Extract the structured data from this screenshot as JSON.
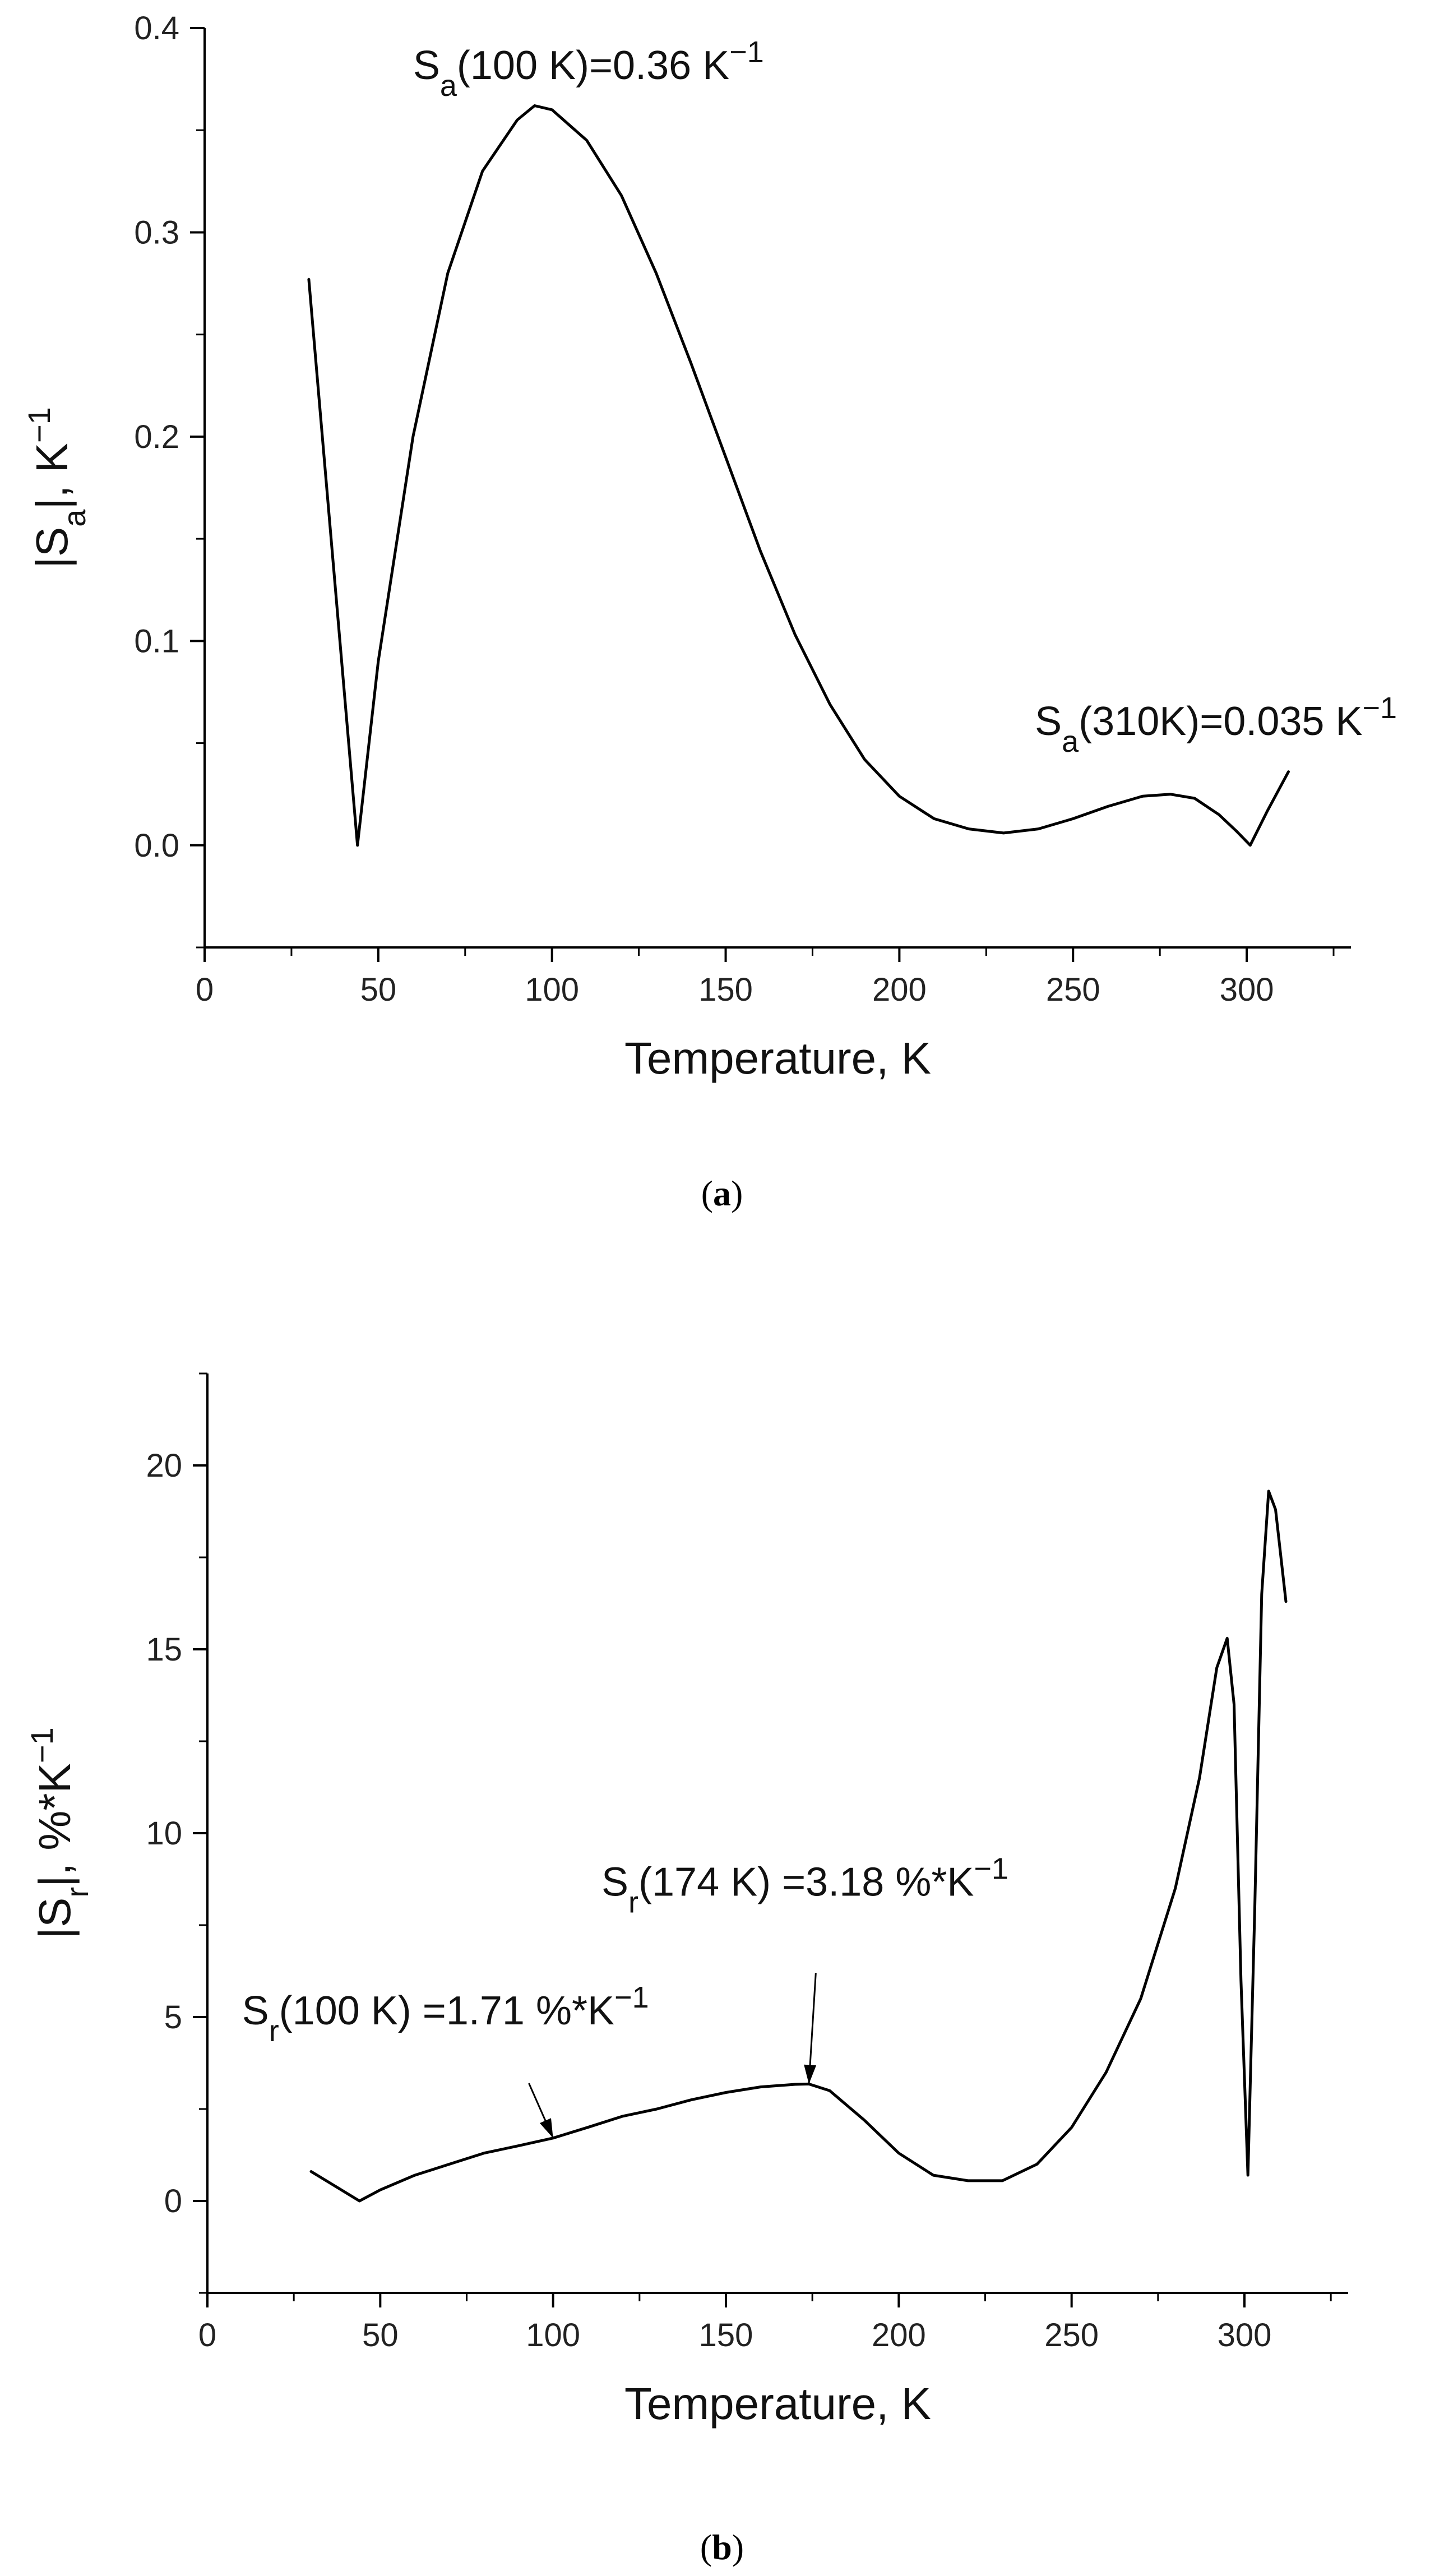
{
  "chart_data": [
    {
      "type": "line",
      "panel": "a",
      "caption": "(a)",
      "xlabel": "Temperature, K",
      "ylabel": {
        "prefix": "|S",
        "sub": "a",
        "mid": "|, K",
        "sup": "−1"
      },
      "xlim": [
        0,
        330
      ],
      "ylim": [
        -0.05,
        0.4
      ],
      "xticks": [
        0,
        50,
        100,
        150,
        200,
        250,
        300
      ],
      "yticks": [
        0.0,
        0.1,
        0.2,
        0.3,
        0.4
      ],
      "ytick_labels": [
        "0.0",
        "0.1",
        "0.2",
        "0.3",
        "0.4"
      ],
      "series": [
        {
          "x": [
            30,
            44,
            50,
            60,
            70,
            80,
            90,
            95,
            100,
            110,
            120,
            130,
            140,
            150,
            160,
            170,
            180,
            190,
            200,
            210,
            220,
            230,
            240,
            250,
            260,
            270,
            278,
            285,
            292,
            297,
            301,
            306,
            312
          ],
          "y": [
            0.277,
            0.0,
            0.09,
            0.2,
            0.28,
            0.33,
            0.355,
            0.362,
            0.36,
            0.345,
            0.318,
            0.28,
            0.236,
            0.19,
            0.144,
            0.103,
            0.069,
            0.042,
            0.024,
            0.013,
            0.008,
            0.006,
            0.008,
            0.013,
            0.019,
            0.024,
            0.025,
            0.023,
            0.015,
            0.007,
            0.0,
            0.017,
            0.036
          ]
        }
      ],
      "annotations": [
        {
          "base": "S",
          "sub": "a",
          "text": "(100 K)=0.36 K",
          "sup": "−1",
          "x": 60,
          "y": 0.375
        },
        {
          "base": "S",
          "sub": "a",
          "text": "(310K)=0.035 K",
          "sup": "−1",
          "x": 239,
          "y": 0.054
        }
      ]
    },
    {
      "type": "line",
      "panel": "b",
      "caption": "(b)",
      "xlabel": "Temperature, K",
      "ylabel": {
        "prefix": "|S",
        "sub": "r",
        "mid": "|, %*K",
        "sup": "−1"
      },
      "xlim": [
        0,
        330
      ],
      "ylim": [
        -2.5,
        22.5
      ],
      "xticks": [
        0,
        50,
        100,
        150,
        200,
        250,
        300
      ],
      "yticks": [
        0,
        5,
        10,
        15,
        20
      ],
      "ytick_labels": [
        "0",
        "5",
        "10",
        "15",
        "20"
      ],
      "series": [
        {
          "x": [
            30,
            37,
            44,
            50,
            60,
            70,
            80,
            90,
            100,
            110,
            120,
            130,
            140,
            150,
            160,
            170,
            174,
            180,
            190,
            200,
            210,
            220,
            230,
            240,
            250,
            260,
            270,
            280,
            287,
            292,
            295,
            297,
            299,
            301,
            303,
            305,
            307,
            309,
            312
          ],
          "y": [
            0.8,
            0.4,
            0.0,
            0.3,
            0.7,
            1.0,
            1.3,
            1.5,
            1.71,
            2.0,
            2.3,
            2.5,
            2.75,
            2.95,
            3.1,
            3.17,
            3.18,
            3.0,
            2.2,
            1.3,
            0.7,
            0.55,
            0.55,
            1.0,
            2.0,
            3.5,
            5.5,
            8.5,
            11.5,
            14.5,
            15.3,
            13.5,
            6.0,
            0.7,
            8.0,
            16.5,
            19.3,
            18.8,
            16.3
          ]
        }
      ],
      "annotations": [
        {
          "base": "S",
          "sub": "r",
          "text": "(100 K) =1.71 %*K",
          "sup": "−1",
          "x": 10,
          "y": 4.8,
          "arrow_from": [
            93,
            3.2
          ],
          "arrow_to": [
            100,
            1.71
          ]
        },
        {
          "base": "S",
          "sub": "r",
          "text": "(174 K) =3.18 %*K",
          "sup": "−1",
          "x": 114,
          "y": 8.3,
          "arrow_from": [
            176,
            6.2
          ],
          "arrow_to": [
            174,
            3.18
          ]
        }
      ]
    }
  ]
}
